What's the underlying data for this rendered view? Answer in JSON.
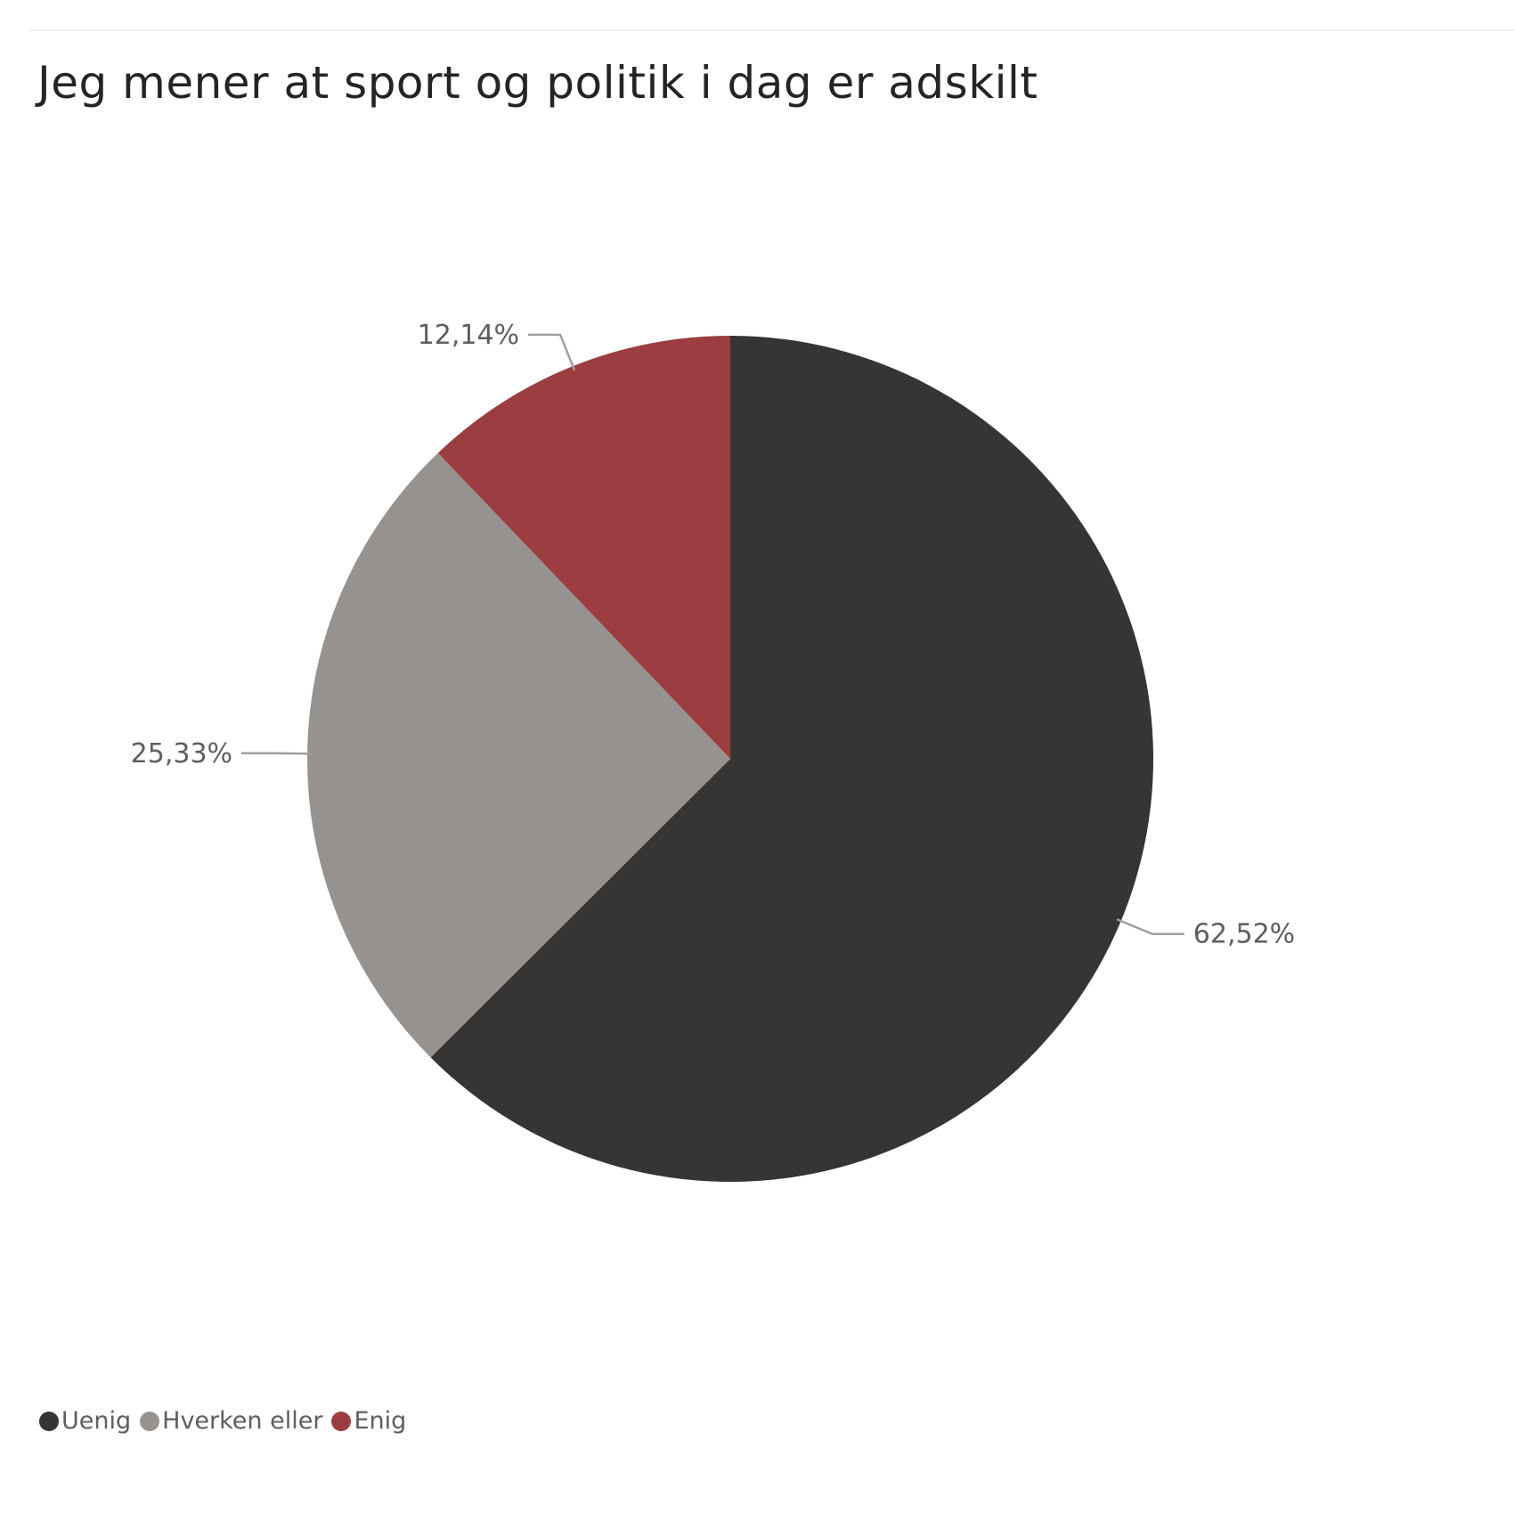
{
  "title": "Jeg mener at sport og politik i dag er adskilt",
  "chart_data": {
    "type": "pie",
    "title": "Jeg mener at sport og politik i dag er adskilt",
    "categories": [
      "Uenig",
      "Hverken eller",
      "Enig"
    ],
    "values": [
      62.52,
      25.33,
      12.14
    ],
    "data_labels": [
      "62,52%",
      "25,33%",
      "12,14%"
    ],
    "colors": [
      "#373434",
      "#96928f",
      "#9c3d41"
    ],
    "start_angle": "12 o'clock, clockwise",
    "legend_position": "bottom-left"
  },
  "legend": {
    "items": [
      {
        "label": "Uenig",
        "color": "#373434"
      },
      {
        "label": "Hverken eller",
        "color": "#96928f"
      },
      {
        "label": "Enig",
        "color": "#9c3d41"
      }
    ]
  }
}
